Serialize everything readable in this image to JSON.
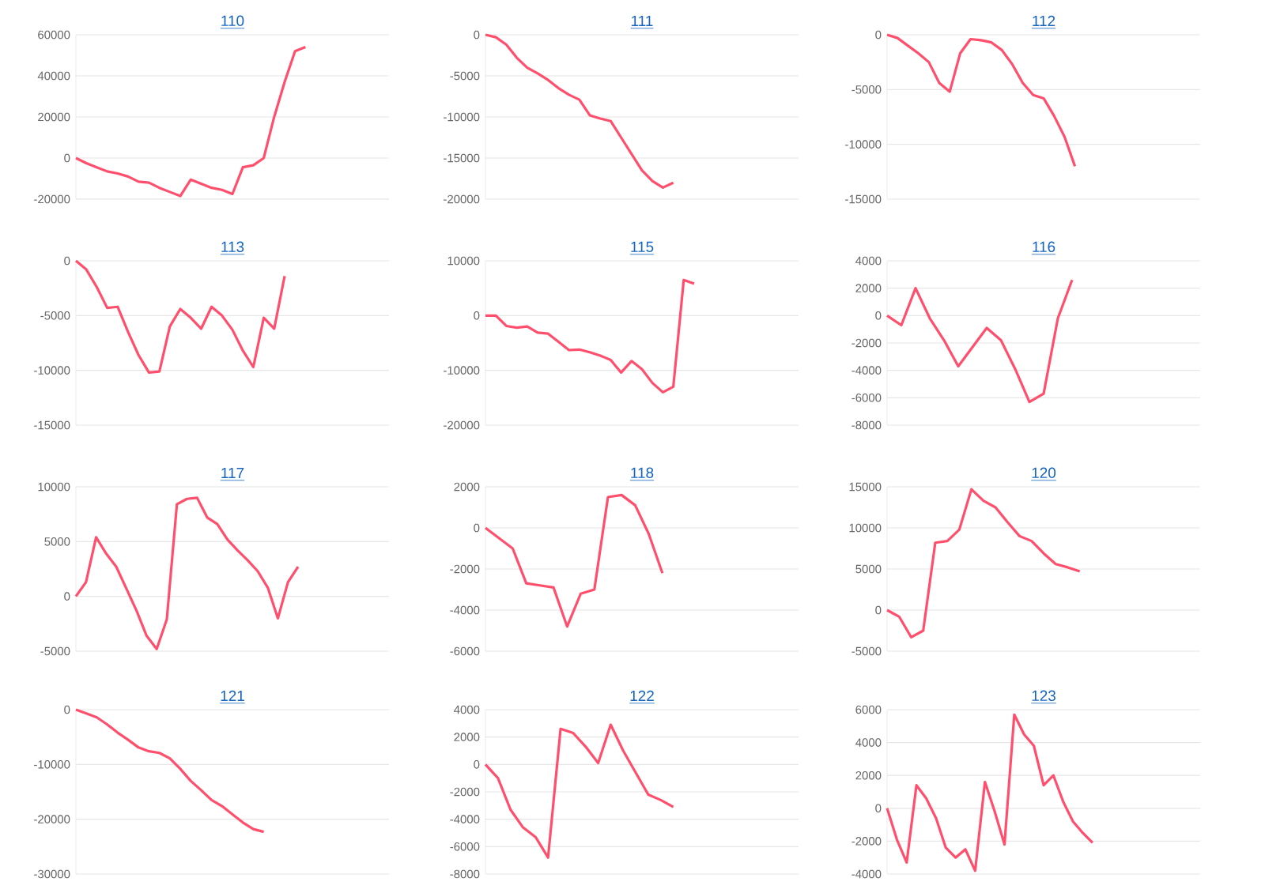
{
  "chart_data": [
    {
      "type": "line",
      "title": "110",
      "color": "#ff4f6d",
      "grid": "y",
      "ylim": [
        -20000,
        60000
      ],
      "yticks": [
        -20000,
        0,
        20000,
        40000,
        60000
      ],
      "categories": [
        null,
        null,
        null,
        null,
        null,
        null,
        null,
        null,
        null,
        null,
        null,
        null,
        null,
        null,
        null,
        null,
        null,
        null,
        null,
        null,
        null,
        null,
        null,
        null,
        null,
        null,
        null,
        null,
        null,
        null,
        null
      ],
      "values": [
        0,
        -2500,
        -4500,
        -6500,
        -7500,
        -9000,
        -11500,
        -12000,
        -14500,
        -16500,
        -18500,
        -10500,
        -12500,
        -14500,
        -15500,
        -17500,
        -4500,
        -3500,
        0,
        20000,
        37000,
        52000,
        54000,
        null,
        null,
        null,
        null,
        null,
        null,
        null,
        null
      ]
    },
    {
      "type": "line",
      "title": "111",
      "color": "#ff4f6d",
      "grid": "y",
      "ylim": [
        -20000,
        0
      ],
      "yticks": [
        -20000,
        -15000,
        -10000,
        -5000,
        0
      ],
      "categories": [
        null,
        null,
        null,
        null,
        null,
        null,
        null,
        null,
        null,
        null,
        null,
        null,
        null,
        null,
        null,
        null,
        null,
        null,
        null,
        null,
        null,
        null,
        null,
        null,
        null,
        null,
        null,
        null,
        null,
        null,
        null
      ],
      "values": [
        0,
        -300,
        -1200,
        -2800,
        -4000,
        -4700,
        -5500,
        -6500,
        -7300,
        -7900,
        -9800,
        -10200,
        -10500,
        -12500,
        -14500,
        -16500,
        -17800,
        -18600,
        -18000,
        null,
        null,
        null,
        null,
        null,
        null,
        null,
        null,
        null,
        null,
        null,
        null
      ]
    },
    {
      "type": "line",
      "title": "112",
      "color": "#ff4f6d",
      "grid": "y",
      "ylim": [
        -15000,
        0
      ],
      "yticks": [
        -15000,
        -10000,
        -5000,
        0
      ],
      "categories": [
        null,
        null,
        null,
        null,
        null,
        null,
        null,
        null,
        null,
        null,
        null,
        null,
        null,
        null,
        null,
        null,
        null,
        null,
        null,
        null,
        null,
        null,
        null,
        null,
        null,
        null,
        null,
        null,
        null,
        null,
        null
      ],
      "values": [
        0,
        -300,
        -1000,
        -1700,
        -2500,
        -4400,
        -5200,
        -1700,
        -400,
        -500,
        -700,
        -1400,
        -2700,
        -4400,
        -5500,
        -5800,
        -7400,
        -9300,
        -12000,
        null,
        null,
        null,
        null,
        null,
        null,
        null,
        null,
        null,
        null,
        null,
        null
      ]
    },
    {
      "type": "line",
      "title": "113",
      "color": "#ff4f6d",
      "grid": "y",
      "ylim": [
        -15000,
        0
      ],
      "yticks": [
        -15000,
        -10000,
        -5000,
        0
      ],
      "categories": [
        null,
        null,
        null,
        null,
        null,
        null,
        null,
        null,
        null,
        null,
        null,
        null,
        null,
        null,
        null,
        null,
        null,
        null,
        null,
        null,
        null,
        null,
        null,
        null,
        null,
        null,
        null,
        null,
        null,
        null,
        null
      ],
      "values": [
        0,
        -800,
        -2400,
        -4300,
        -4200,
        -6500,
        -8600,
        -10200,
        -10100,
        -6000,
        -4400,
        -5200,
        -6200,
        -4200,
        -5000,
        -6300,
        -8200,
        -9700,
        -5200,
        -6200,
        -1400,
        null,
        null,
        null,
        null,
        null,
        null,
        null,
        null,
        null,
        null
      ]
    },
    {
      "type": "line",
      "title": "115",
      "color": "#ff4f6d",
      "grid": "y",
      "ylim": [
        -20000,
        10000
      ],
      "yticks": [
        -20000,
        -10000,
        0,
        10000
      ],
      "categories": [
        null,
        null,
        null,
        null,
        null,
        null,
        null,
        null,
        null,
        null,
        null,
        null,
        null,
        null,
        null,
        null,
        null,
        null,
        null,
        null,
        null,
        null,
        null,
        null,
        null,
        null,
        null,
        null,
        null,
        null,
        null
      ],
      "values": [
        0,
        0,
        -1900,
        -2200,
        -2000,
        -3100,
        -3300,
        -4800,
        -6300,
        -6200,
        -6700,
        -7300,
        -8100,
        -10400,
        -8300,
        -9800,
        -12300,
        -14000,
        -13000,
        6500,
        5800,
        null,
        null,
        null,
        null,
        null,
        null,
        null,
        null,
        null,
        null
      ]
    },
    {
      "type": "line",
      "title": "116",
      "color": "#ff4f6d",
      "grid": "y",
      "ylim": [
        -8000,
        4000
      ],
      "yticks": [
        -8000,
        -6000,
        -4000,
        -2000,
        0,
        2000,
        4000
      ],
      "categories": [
        null,
        null,
        null,
        null,
        null,
        null,
        null,
        null,
        null,
        null,
        null,
        null,
        null,
        null,
        null,
        null,
        null,
        null,
        null,
        null,
        null,
        null,
        null
      ],
      "values": [
        0,
        -700,
        2000,
        -200,
        -1800,
        -3700,
        -2300,
        -900,
        -1800,
        -3900,
        -6300,
        -5700,
        -200,
        2600,
        null,
        null,
        null,
        null,
        null,
        null,
        null,
        null,
        null
      ]
    },
    {
      "type": "line",
      "title": "117",
      "color": "#ff4f6d",
      "grid": "y",
      "ylim": [
        -5000,
        10000
      ],
      "yticks": [
        -5000,
        0,
        5000,
        10000
      ],
      "categories": [
        null,
        null,
        null,
        null,
        null,
        null,
        null,
        null,
        null,
        null,
        null,
        null,
        null,
        null,
        null,
        null,
        null,
        null,
        null,
        null,
        null,
        null,
        null,
        null,
        null,
        null,
        null,
        null,
        null,
        null,
        null,
        null
      ],
      "values": [
        0,
        1300,
        5400,
        3900,
        2700,
        700,
        -1300,
        -3600,
        -4800,
        -2100,
        8400,
        8900,
        9000,
        7200,
        6600,
        5200,
        4200,
        3300,
        2300,
        800,
        -2000,
        1300,
        2700,
        null,
        null,
        null,
        null,
        null,
        null,
        null,
        null,
        null
      ]
    },
    {
      "type": "line",
      "title": "118",
      "color": "#ff4f6d",
      "grid": "y",
      "ylim": [
        -6000,
        2000
      ],
      "yticks": [
        -6000,
        -4000,
        -2000,
        0,
        2000
      ],
      "categories": [
        null,
        null,
        null,
        null,
        null,
        null,
        null,
        null,
        null,
        null,
        null,
        null,
        null,
        null,
        null,
        null,
        null,
        null,
        null,
        null,
        null,
        null,
        null,
        null
      ],
      "values": [
        0,
        -500,
        -1000,
        -2700,
        -2800,
        -2900,
        -4800,
        -3200,
        -3000,
        1500,
        1600,
        1100,
        -300,
        -2200,
        null,
        null,
        null,
        null,
        null,
        null,
        null,
        null,
        null,
        null
      ]
    },
    {
      "type": "line",
      "title": "120",
      "color": "#ff4f6d",
      "grid": "y",
      "ylim": [
        -5000,
        15000
      ],
      "yticks": [
        -5000,
        0,
        5000,
        10000,
        15000
      ],
      "categories": [
        null,
        null,
        null,
        null,
        null,
        null,
        null,
        null,
        null,
        null,
        null,
        null,
        null,
        null,
        null,
        null,
        null,
        null,
        null,
        null,
        null,
        null,
        null,
        null,
        null,
        null,
        null
      ],
      "values": [
        0,
        -800,
        -3300,
        -2500,
        8200,
        8400,
        9800,
        14700,
        13300,
        12500,
        10700,
        9000,
        8400,
        6900,
        5600,
        5200,
        4700,
        null,
        null,
        null,
        null,
        null,
        null,
        null,
        null,
        null,
        null
      ]
    },
    {
      "type": "line",
      "title": "121",
      "color": "#ff4f6d",
      "grid": "y",
      "ylim": [
        -30000,
        0
      ],
      "yticks": [
        -30000,
        -20000,
        -10000,
        0
      ],
      "categories": [
        null,
        null,
        null,
        null,
        null,
        null,
        null,
        null,
        null,
        null,
        null,
        null,
        null,
        null,
        null,
        null,
        null,
        null,
        null,
        null,
        null,
        null,
        null,
        null,
        null,
        null,
        null,
        null,
        null,
        null,
        null
      ],
      "values": [
        0,
        -700,
        -1400,
        -2700,
        -4200,
        -5500,
        -6900,
        -7600,
        -7900,
        -8900,
        -10800,
        -13000,
        -14700,
        -16500,
        -17600,
        -19100,
        -20600,
        -21800,
        -22300,
        null,
        null,
        null,
        null,
        null,
        null,
        null,
        null,
        null,
        null,
        null,
        null
      ]
    },
    {
      "type": "line",
      "title": "122",
      "color": "#ff4f6d",
      "grid": "y",
      "ylim": [
        -8000,
        4000
      ],
      "yticks": [
        -8000,
        -6000,
        -4000,
        -2000,
        0,
        2000,
        4000
      ],
      "categories": [
        null,
        null,
        null,
        null,
        null,
        null,
        null,
        null,
        null,
        null,
        null,
        null,
        null,
        null,
        null,
        null,
        null,
        null,
        null,
        null,
        null,
        null,
        null,
        null,
        null,
        null
      ],
      "values": [
        0,
        -1000,
        -3300,
        -4600,
        -5300,
        -6800,
        2600,
        2300,
        1300,
        100,
        2900,
        1000,
        -600,
        -2200,
        -2600,
        -3100,
        null,
        null,
        null,
        null,
        null,
        null,
        null,
        null,
        null,
        null
      ]
    },
    {
      "type": "line",
      "title": "123",
      "color": "#ff4f6d",
      "grid": "y",
      "ylim": [
        -4000,
        6000
      ],
      "yticks": [
        -4000,
        -2000,
        0,
        2000,
        4000,
        6000
      ],
      "categories": [
        null,
        null,
        null,
        null,
        null,
        null,
        null,
        null,
        null,
        null,
        null,
        null,
        null,
        null,
        null,
        null,
        null,
        null,
        null,
        null,
        null,
        null,
        null,
        null,
        null,
        null,
        null,
        null,
        null,
        null,
        null,
        null,
        null
      ],
      "values": [
        0,
        -1900,
        -3300,
        1400,
        600,
        -600,
        -2400,
        -3000,
        -2500,
        -3800,
        1600,
        -200,
        -2200,
        5700,
        4500,
        3800,
        1400,
        2000,
        400,
        -800,
        -1500,
        -2100,
        null,
        null,
        null,
        null,
        null,
        null,
        null,
        null,
        null,
        null,
        null
      ]
    }
  ]
}
